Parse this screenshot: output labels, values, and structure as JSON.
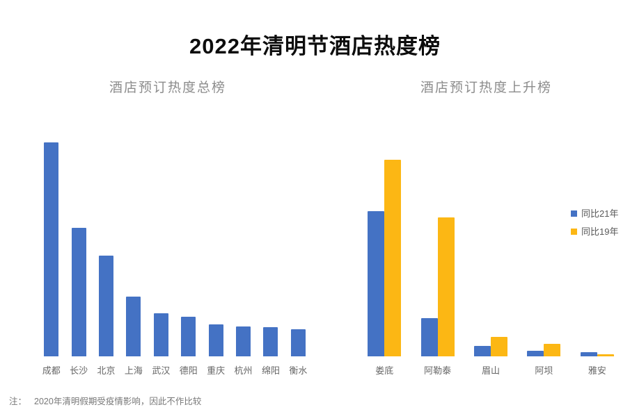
{
  "page": {
    "title": "2022年清明节酒店热度榜",
    "note_label": "注：",
    "note_text": "2020年清明假期受疫情影响，因此不作比较"
  },
  "colors": {
    "bar_blue": "#4472C4",
    "bar_yellow": "#FCB714",
    "title_text": "#0D0D0D",
    "subtitle_text": "#8C8C8C",
    "axis_label_text": "#666666",
    "legend_text": "#595959",
    "note_text": "#787878",
    "background": "#FFFFFF"
  },
  "chart_data": [
    {
      "id": "total-rank",
      "type": "bar",
      "title": "酒店预订热度总榜",
      "categories": [
        "成都",
        "长沙",
        "北京",
        "上海",
        "武汉",
        "德阳",
        "重庆",
        "杭州",
        "绵阳",
        "衡水"
      ],
      "series": [
        {
          "name": "",
          "key": "heat",
          "color": "#4472C4",
          "values": [
            100,
            60,
            47,
            28,
            20,
            18.5,
            15,
            14,
            13.5,
            12.5
          ]
        }
      ],
      "value_note": "relative booking-heat index estimated from bar heights, 成都 = 100",
      "xlabel": "",
      "ylabel": "",
      "ylim": [
        0,
        102
      ],
      "grid": false,
      "axis_line": false,
      "legend_position": "none"
    },
    {
      "id": "rising-rank",
      "type": "bar",
      "title": "酒店预订热度上升榜",
      "categories": [
        "娄底",
        "阿勒泰",
        "眉山",
        "阿坝",
        "雅安"
      ],
      "series": [
        {
          "name": "同比21年",
          "key": "yoy-2021",
          "color": "#4472C4",
          "values": [
            68,
            18,
            5,
            2.5,
            2
          ]
        },
        {
          "name": "同比19年",
          "key": "yoy-2019",
          "color": "#FCB714",
          "values": [
            92,
            65,
            9,
            6,
            1
          ]
        }
      ],
      "value_note": "relative growth index estimated from bar heights, same scale as left chart",
      "xlabel": "",
      "ylabel": "",
      "ylim": [
        0,
        102
      ],
      "grid": false,
      "axis_line": false,
      "legend_position": "right"
    }
  ]
}
